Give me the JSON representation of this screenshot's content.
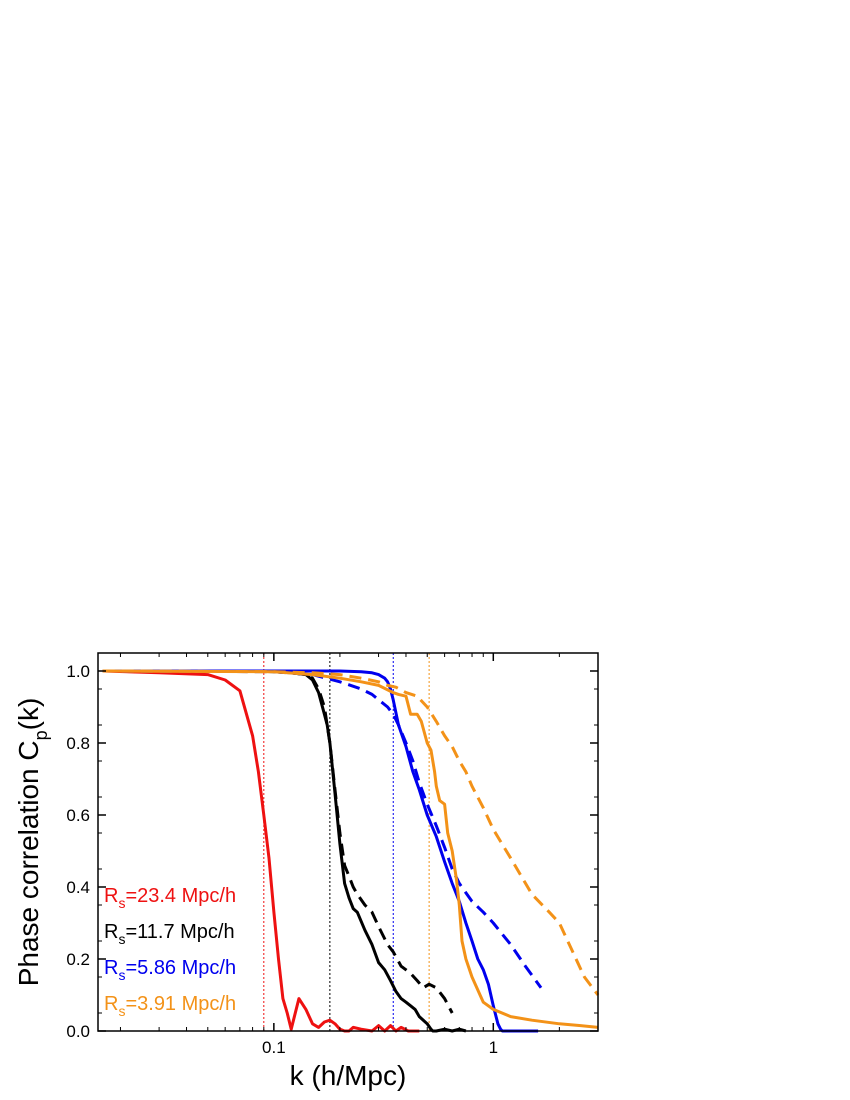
{
  "chart_data": {
    "type": "line",
    "xlabel": "k (h/Mpc)",
    "ylabel_main": "Phase correlation C",
    "ylabel_sub": "p",
    "ylabel_tail": "(k)",
    "x_scale": "log",
    "xlim": [
      0.0158,
      3.0
    ],
    "ylim": [
      0.0,
      1.05
    ],
    "x_tick_labels": [
      {
        "value": 0.1,
        "label": "0.1"
      },
      {
        "value": 1,
        "label": "1"
      }
    ],
    "y_ticks": [
      {
        "value": 0.0,
        "label": "0.0"
      },
      {
        "value": 0.2,
        "label": "0.2"
      },
      {
        "value": 0.4,
        "label": "0.4"
      },
      {
        "value": 0.6,
        "label": "0.6"
      },
      {
        "value": 0.8,
        "label": "0.8"
      },
      {
        "value": 1.0,
        "label": "1.0"
      }
    ],
    "grid": false,
    "legend_position": "lower-left",
    "legend": [
      {
        "pre": "R",
        "sub": "s",
        "post": "=23.4 Mpc/h",
        "color": "#ee1111"
      },
      {
        "pre": "R",
        "sub": "s",
        "post": "=11.7 Mpc/h",
        "color": "#000000"
      },
      {
        "pre": "R",
        "sub": "s",
        "post": "=5.86 Mpc/h",
        "color": "#0000ee"
      },
      {
        "pre": "R",
        "sub": "s",
        "post": "=3.91 Mpc/h",
        "color": "#f39218"
      }
    ],
    "vlines": [
      {
        "x": 0.09,
        "color": "#ee1111"
      },
      {
        "x": 0.18,
        "color": "#000000"
      },
      {
        "x": 0.35,
        "color": "#0000ee"
      },
      {
        "x": 0.51,
        "color": "#f39218"
      }
    ],
    "series": [
      {
        "color": "#ee1111",
        "style": "solid",
        "x": [
          0.0166,
          0.03,
          0.05,
          0.06,
          0.07,
          0.08,
          0.085,
          0.09,
          0.095,
          0.1,
          0.105,
          0.11,
          0.115,
          0.12,
          0.13,
          0.14,
          0.15,
          0.16,
          0.17,
          0.18,
          0.19,
          0.2,
          0.21,
          0.22,
          0.23,
          0.25,
          0.28,
          0.3,
          0.32,
          0.34,
          0.36,
          0.38,
          0.41,
          0.46
        ],
        "y": [
          1.0,
          0.995,
          0.99,
          0.975,
          0.945,
          0.82,
          0.72,
          0.6,
          0.48,
          0.33,
          0.2,
          0.09,
          0.05,
          0.005,
          0.09,
          0.06,
          0.02,
          0.01,
          0.025,
          0.03,
          0.02,
          0.005,
          0.0,
          0.0,
          0.01,
          0.005,
          0.0,
          0.015,
          0.0,
          0.015,
          0.0,
          0.01,
          0.0,
          0.0
        ]
      },
      {
        "color": "#000000",
        "style": "solid",
        "x": [
          0.0166,
          0.05,
          0.08,
          0.1,
          0.12,
          0.14,
          0.15,
          0.16,
          0.17,
          0.175,
          0.18,
          0.19,
          0.2,
          0.21,
          0.22,
          0.23,
          0.24,
          0.26,
          0.28,
          0.3,
          0.32,
          0.34,
          0.36,
          0.38,
          0.4,
          0.42,
          0.44,
          0.46,
          0.48,
          0.5,
          0.52,
          0.53,
          0.55,
          0.6,
          0.65,
          0.7,
          0.75
        ],
        "y": [
          1.0,
          1.0,
          1.0,
          0.998,
          0.995,
          0.99,
          0.975,
          0.94,
          0.88,
          0.85,
          0.8,
          0.66,
          0.52,
          0.41,
          0.37,
          0.34,
          0.33,
          0.28,
          0.24,
          0.19,
          0.17,
          0.14,
          0.11,
          0.09,
          0.08,
          0.07,
          0.06,
          0.04,
          0.03,
          0.02,
          0.005,
          0.0,
          0.0,
          0.005,
          0.0,
          0.005,
          0.0
        ]
      },
      {
        "color": "#000000",
        "style": "dashed",
        "x": [
          0.0166,
          0.05,
          0.08,
          0.1,
          0.12,
          0.14,
          0.15,
          0.16,
          0.17,
          0.18,
          0.19,
          0.2,
          0.21,
          0.22,
          0.23,
          0.24,
          0.26,
          0.28,
          0.3,
          0.33,
          0.35,
          0.38,
          0.4,
          0.42,
          0.45,
          0.48,
          0.51,
          0.55,
          0.6,
          0.65
        ],
        "y": [
          1.0,
          1.0,
          1.0,
          0.998,
          0.995,
          0.99,
          0.98,
          0.95,
          0.9,
          0.8,
          0.67,
          0.55,
          0.46,
          0.43,
          0.4,
          0.38,
          0.35,
          0.33,
          0.29,
          0.24,
          0.22,
          0.18,
          0.17,
          0.16,
          0.14,
          0.12,
          0.13,
          0.12,
          0.09,
          0.05
        ]
      },
      {
        "color": "#0000ee",
        "style": "solid",
        "x": [
          0.0166,
          0.1,
          0.2,
          0.25,
          0.28,
          0.3,
          0.32,
          0.33,
          0.34,
          0.35,
          0.37,
          0.4,
          0.43,
          0.46,
          0.5,
          0.55,
          0.6,
          0.65,
          0.7,
          0.75,
          0.8,
          0.85,
          0.9,
          0.95,
          1.0,
          1.05,
          1.08,
          1.1,
          1.15,
          1.3,
          1.6
        ],
        "y": [
          1.0,
          1.0,
          1.0,
          0.998,
          0.995,
          0.99,
          0.98,
          0.97,
          0.95,
          0.92,
          0.85,
          0.79,
          0.72,
          0.67,
          0.6,
          0.54,
          0.47,
          0.41,
          0.36,
          0.3,
          0.25,
          0.2,
          0.17,
          0.13,
          0.07,
          0.02,
          0.005,
          0.0,
          0.0,
          0.0,
          0.0
        ]
      },
      {
        "color": "#0000ee",
        "style": "dashed",
        "x": [
          0.0166,
          0.1,
          0.15,
          0.2,
          0.25,
          0.28,
          0.3,
          0.33,
          0.35,
          0.37,
          0.4,
          0.43,
          0.46,
          0.5,
          0.55,
          0.6,
          0.65,
          0.7,
          0.8,
          0.9,
          1.0,
          1.2,
          1.4,
          1.65
        ],
        "y": [
          1.0,
          0.998,
          0.99,
          0.97,
          0.95,
          0.935,
          0.92,
          0.9,
          0.88,
          0.85,
          0.8,
          0.75,
          0.69,
          0.63,
          0.57,
          0.51,
          0.45,
          0.41,
          0.36,
          0.33,
          0.3,
          0.24,
          0.18,
          0.12
        ]
      },
      {
        "color": "#f39218",
        "style": "solid",
        "x": [
          0.0166,
          0.1,
          0.15,
          0.2,
          0.25,
          0.3,
          0.35,
          0.37,
          0.4,
          0.42,
          0.45,
          0.47,
          0.5,
          0.52,
          0.54,
          0.55,
          0.57,
          0.6,
          0.62,
          0.65,
          0.68,
          0.7,
          0.72,
          0.75,
          0.8,
          0.9,
          1.0,
          1.2,
          1.5,
          2.0,
          2.5,
          3.0
        ],
        "y": [
          1.0,
          0.998,
          0.99,
          0.98,
          0.97,
          0.96,
          0.94,
          0.935,
          0.93,
          0.88,
          0.88,
          0.86,
          0.8,
          0.78,
          0.72,
          0.68,
          0.64,
          0.63,
          0.55,
          0.5,
          0.42,
          0.35,
          0.25,
          0.2,
          0.15,
          0.08,
          0.06,
          0.04,
          0.03,
          0.02,
          0.015,
          0.01
        ]
      },
      {
        "color": "#f39218",
        "style": "dashed",
        "x": [
          0.0166,
          0.1,
          0.15,
          0.2,
          0.25,
          0.3,
          0.33,
          0.36,
          0.4,
          0.45,
          0.5,
          0.55,
          0.6,
          0.65,
          0.7,
          0.75,
          0.8,
          0.9,
          1.0,
          1.2,
          1.5,
          1.8,
          2.0,
          2.3,
          2.6,
          3.0
        ],
        "y": [
          1.0,
          0.998,
          0.995,
          0.99,
          0.98,
          0.97,
          0.96,
          0.955,
          0.94,
          0.93,
          0.9,
          0.86,
          0.82,
          0.79,
          0.75,
          0.72,
          0.68,
          0.62,
          0.56,
          0.48,
          0.38,
          0.33,
          0.3,
          0.22,
          0.15,
          0.1
        ]
      }
    ]
  }
}
